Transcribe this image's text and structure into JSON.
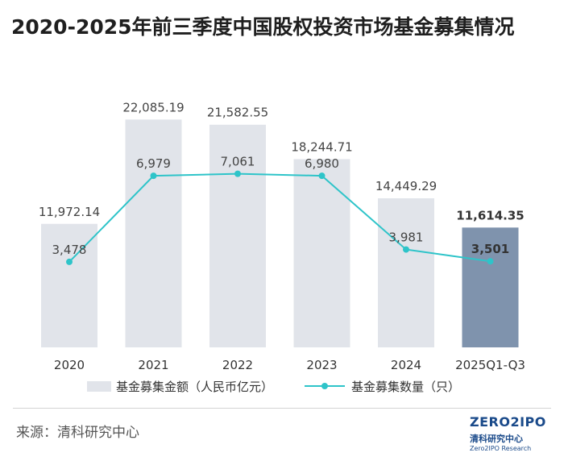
{
  "title": "2020-2025年前三季度中国股权投资市场基金募集情况",
  "source": "来源：清科研究中心",
  "logo": {
    "main": "ZERO2IPO",
    "cn": "清科研究中心",
    "en": "Zero2IPO Research"
  },
  "colors": {
    "bar": "#e1e4ea",
    "bar_highlight": "#7f93ad",
    "line": "#2ec4c9",
    "text": "#333333"
  },
  "chart_data": {
    "type": "bar",
    "categories": [
      "2020",
      "2021",
      "2022",
      "2023",
      "2024",
      "2025Q1-Q3"
    ],
    "series": [
      {
        "name": "基金募集金额（人民币亿元）",
        "type": "bar",
        "values": [
          11972.14,
          22085.19,
          21582.55,
          18244.71,
          14449.29,
          11614.35
        ],
        "labels": [
          "11,972.14",
          "22,085.19",
          "21,582.55",
          "18,244.71",
          "14,449.29",
          "11,614.35"
        ]
      },
      {
        "name": "基金募集数量（只）",
        "type": "line",
        "values": [
          3478,
          6979,
          7061,
          6980,
          3981,
          3501
        ],
        "labels": [
          "3,478",
          "6,979",
          "7,061",
          "6,980",
          "3,981",
          "3,501"
        ]
      }
    ],
    "highlight_index": 5,
    "legend_position": "bottom"
  }
}
